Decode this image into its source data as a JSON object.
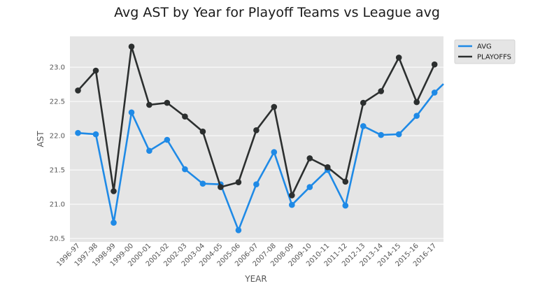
{
  "chart_data": {
    "type": "line",
    "title": "Avg AST by Year for Playoff Teams vs League avg",
    "xlabel": "YEAR",
    "ylabel": "AST",
    "categories": [
      "1996-97",
      "1997-98",
      "1998-99",
      "1999-00",
      "2000-01",
      "2001-02",
      "2002-03",
      "2003-04",
      "2004-05",
      "2005-06",
      "2006-07",
      "2007-08",
      "2008-09",
      "2009-10",
      "2010-11",
      "2011-12",
      "2012-13",
      "2013-14",
      "2014-15",
      "2015-16",
      "2016-17"
    ],
    "yticks": [
      "20.5",
      "21.0",
      "21.5",
      "22.0",
      "22.5",
      "23.0"
    ],
    "ylim": [
      20.45,
      23.45
    ],
    "grid": true,
    "legend_position": "outside-top-right",
    "series": [
      {
        "name": "AVG",
        "color": "#1f8ae6",
        "values": [
          22.04,
          22.02,
          20.73,
          22.34,
          21.78,
          21.94,
          21.51,
          21.3,
          21.29,
          20.62,
          21.29,
          21.76,
          20.99,
          21.25,
          21.5,
          20.98,
          22.14,
          22.01,
          22.02,
          22.29,
          22.63
        ],
        "line_extends_right_to": 22.88
      },
      {
        "name": "PLAYOFFS",
        "color": "#2c2f2f",
        "values": [
          22.66,
          22.95,
          21.19,
          23.3,
          22.45,
          22.48,
          22.28,
          22.06,
          21.25,
          21.32,
          22.08,
          22.42,
          21.13,
          21.67,
          21.54,
          21.33,
          22.48,
          22.65,
          23.14,
          22.49,
          23.04
        ]
      }
    ]
  }
}
